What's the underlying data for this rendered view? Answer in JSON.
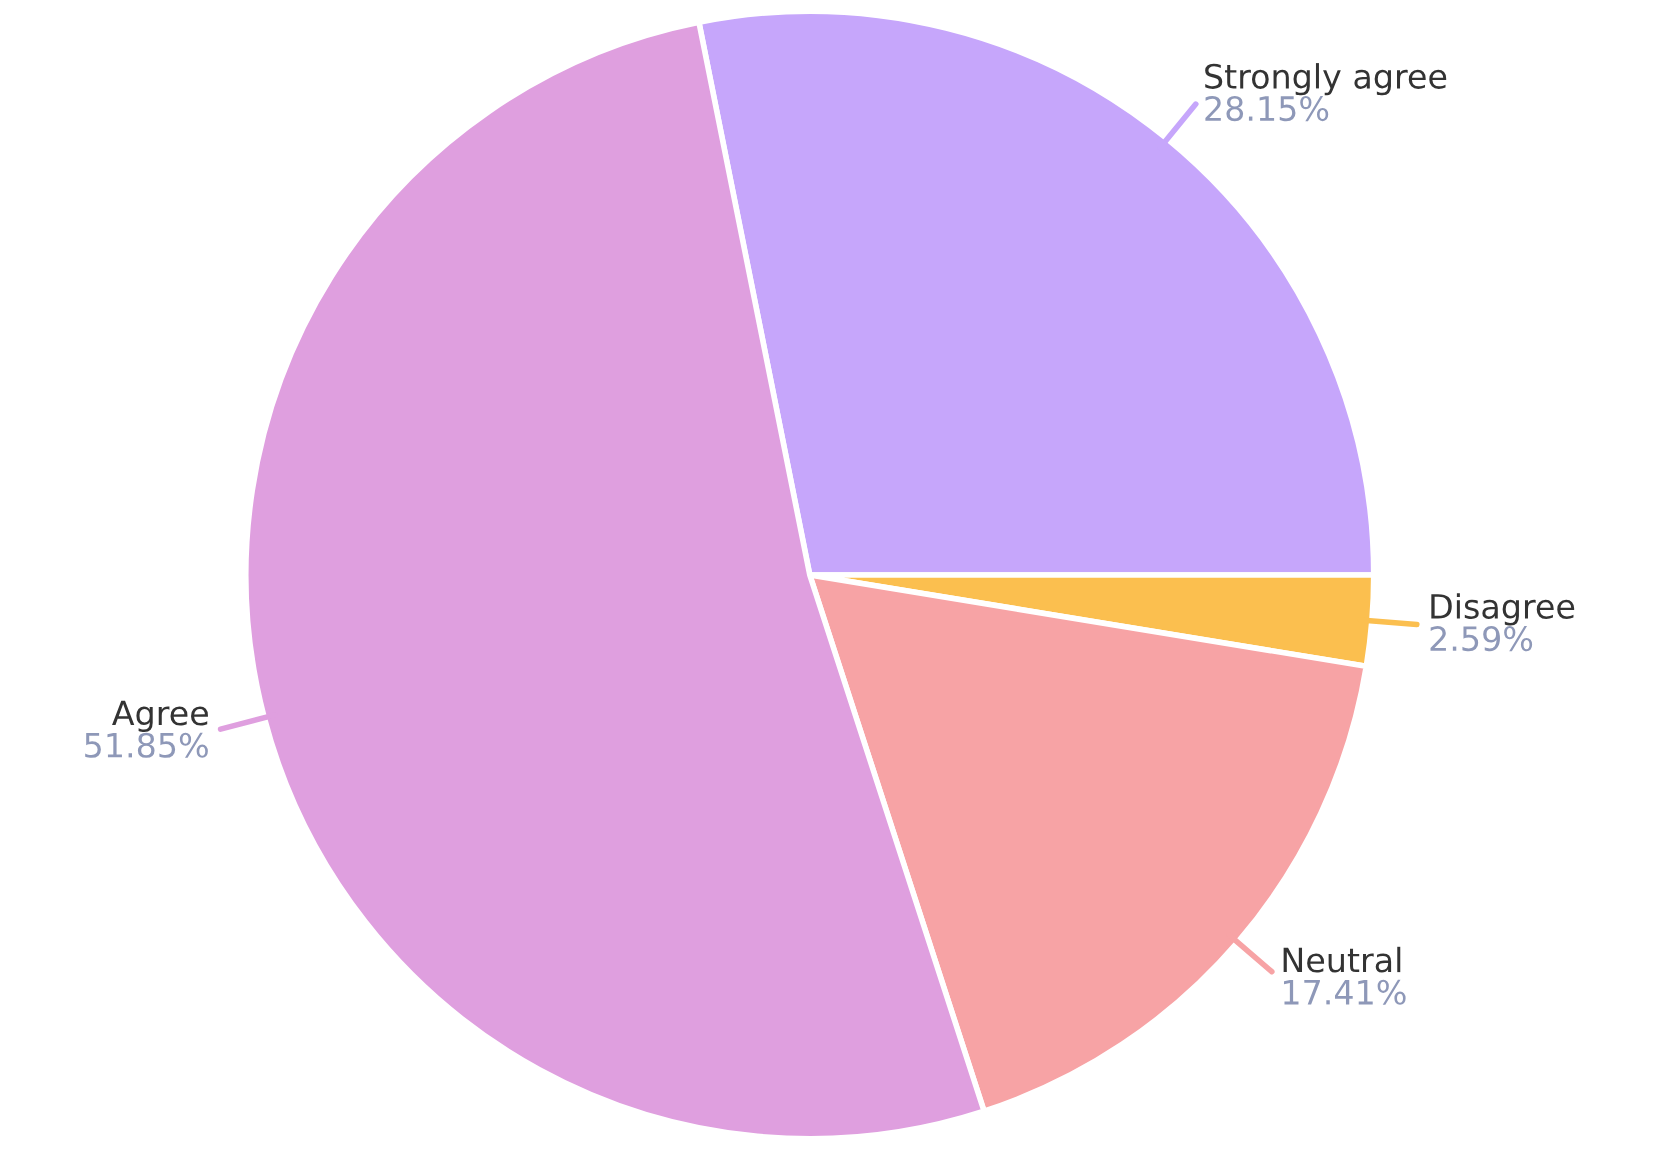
{
  "chart_data": {
    "type": "pie",
    "categories": [
      "Strongly agree",
      "Disagree",
      "Neutral",
      "Agree"
    ],
    "values": [
      28.15,
      2.59,
      17.41,
      51.85
    ],
    "colors": [
      "#c6a6fb",
      "#fbbf4f",
      "#f7a3a5",
      "#df9fdf"
    ],
    "value_labels": [
      "28.15%",
      "2.59%",
      "17.41%",
      "51.85%"
    ],
    "legend": false
  }
}
